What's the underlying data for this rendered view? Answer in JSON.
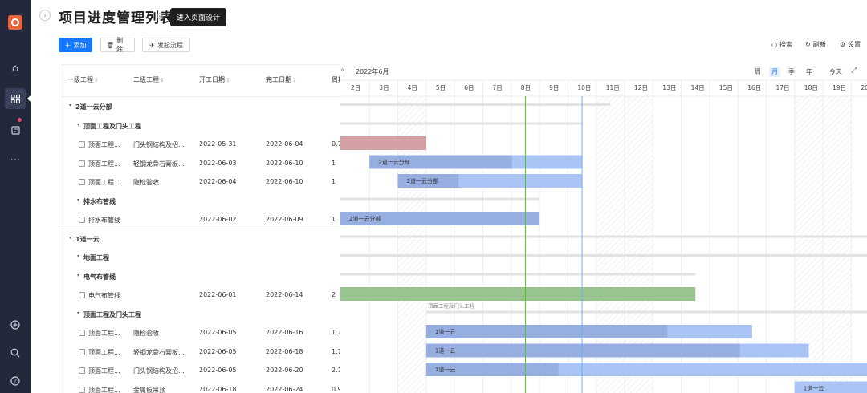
{
  "page": {
    "title": "项目进度管理列表",
    "tooltip": "进入页面设计"
  },
  "toolbar": {
    "add_label": "添加",
    "delete_label": "删除",
    "process_label": "发起流程",
    "search_label": "搜索",
    "refresh_label": "刷新",
    "settings_label": "设置"
  },
  "table": {
    "columns": [
      "一级工程",
      "二级工程",
      "开工日期",
      "完工日期",
      "周期"
    ],
    "rows": [
      {
        "type": "group",
        "level": 1,
        "label": "2道一云分部"
      },
      {
        "type": "group",
        "level": 2,
        "label": "顶面工程及门头工程"
      },
      {
        "type": "item",
        "c1": "顶面工程...",
        "c2": "门头钢结构及招...",
        "start": "2022-05-31",
        "end": "2022-06-04",
        "cycle": "0.7"
      },
      {
        "type": "item",
        "c1": "顶面工程...",
        "c2": "轻钢龙骨石膏板...",
        "start": "2022-06-03",
        "end": "2022-06-10",
        "cycle": "1"
      },
      {
        "type": "item",
        "c1": "顶面工程...",
        "c2": "隐检验收",
        "start": "2022-06-04",
        "end": "2022-06-10",
        "cycle": "1"
      },
      {
        "type": "group",
        "level": 2,
        "label": "排水布管线"
      },
      {
        "type": "item",
        "c1": "排水布管线",
        "c2": "",
        "start": "2022-06-02",
        "end": "2022-06-09",
        "cycle": "1"
      },
      {
        "type": "group",
        "level": 1,
        "label": "1道一云"
      },
      {
        "type": "group",
        "level": 2,
        "label": "地面工程"
      },
      {
        "type": "group",
        "level": 2,
        "label": "电气布管线"
      },
      {
        "type": "item",
        "c1": "电气布管线",
        "c2": "",
        "start": "2022-06-01",
        "end": "2022-06-14",
        "cycle": "2"
      },
      {
        "type": "group",
        "level": 2,
        "label": "顶面工程及门头工程"
      },
      {
        "type": "item",
        "c1": "顶面工程...",
        "c2": "隐检验收",
        "start": "2022-06-05",
        "end": "2022-06-16",
        "cycle": "1.7"
      },
      {
        "type": "item",
        "c1": "顶面工程...",
        "c2": "轻钢龙骨石膏板...",
        "start": "2022-06-05",
        "end": "2022-06-18",
        "cycle": "1.7"
      },
      {
        "type": "item",
        "c1": "顶面工程...",
        "c2": "门头钢结构及招...",
        "start": "2022-06-05",
        "end": "2022-06-20",
        "cycle": "2.1"
      },
      {
        "type": "item",
        "c1": "顶面工程...",
        "c2": "金属板吊顶",
        "start": "2022-06-18",
        "end": "2022-06-24",
        "cycle": "0.9"
      }
    ]
  },
  "gantt": {
    "month_label": "2022年6月",
    "zoom_options": [
      "周",
      "月",
      "季",
      "年",
      "今天"
    ],
    "selected_zoom": "月",
    "days": [
      "2日",
      "3日",
      "4日",
      "5日",
      "6日",
      "7日",
      "8日",
      "9日",
      "10日",
      "11日",
      "12日",
      "13日",
      "14日",
      "15日",
      "16日",
      "17日",
      "18日",
      "19日",
      "20"
    ],
    "first_day": 2,
    "today": 8.0,
    "marker": 10.0,
    "weekend_days": [
      4,
      11,
      12,
      18,
      19
    ],
    "bars": [
      {
        "row": 0,
        "kind": "summary",
        "start": 1.0,
        "end": 11.5
      },
      {
        "row": 1,
        "kind": "summary",
        "start": 1.0,
        "end": 10.5
      },
      {
        "row": 2,
        "kind": "task",
        "start": 1.0,
        "end": 5.0,
        "progress": 1.0,
        "color": "#d4a0a4",
        "label": ""
      },
      {
        "row": 3,
        "kind": "task",
        "start": 3.0,
        "end": 10.5,
        "progress": 0.67,
        "color": "#a9c4f5",
        "done": "#96aee0",
        "label": "2道一云分部"
      },
      {
        "row": 4,
        "kind": "task",
        "start": 4.0,
        "end": 10.5,
        "progress": 0.33,
        "color": "#a9c4f5",
        "done": "#96aee0",
        "label": "2道一云分部"
      },
      {
        "row": 5,
        "kind": "summary",
        "start": 1.0,
        "end": 9.0,
        "label": "排水布管线"
      },
      {
        "row": 6,
        "kind": "task",
        "start": 1.0,
        "end": 9.0,
        "progress": 1.0,
        "color": "#96aee0",
        "label": "2道一云分部"
      },
      {
        "row": 7,
        "kind": "summary",
        "start": 1.0,
        "end": 21.0
      },
      {
        "row": 8,
        "kind": "summary",
        "start": 1.0,
        "end": 21.0
      },
      {
        "row": 9,
        "kind": "summary",
        "start": 1.0,
        "end": 14.5
      },
      {
        "row": 10,
        "kind": "task",
        "start": 1.0,
        "end": 14.5,
        "progress": 1.0,
        "color": "#98c48f",
        "label": ""
      },
      {
        "row": 11,
        "kind": "summary",
        "start": 5.0,
        "end": 21.0,
        "label": "顶面工程及门头工程"
      },
      {
        "row": 12,
        "kind": "task",
        "start": 5.0,
        "end": 16.5,
        "progress": 0.74,
        "color": "#a9c4f5",
        "done": "#96aee0",
        "label": "1道一云"
      },
      {
        "row": 13,
        "kind": "task",
        "start": 5.0,
        "end": 18.5,
        "progress": 0.82,
        "color": "#a9c4f5",
        "done": "#96aee0",
        "label": "1道一云"
      },
      {
        "row": 14,
        "kind": "task",
        "start": 5.0,
        "end": 21.0,
        "progress": 0.3,
        "color": "#a9c4f5",
        "done": "#96aee0",
        "label": "1道一云"
      },
      {
        "row": 15,
        "kind": "task",
        "start": 18.0,
        "end": 21.0,
        "progress": 0.0,
        "color": "#a9c4f5",
        "label": "1道一云"
      }
    ]
  },
  "colors": {
    "primary": "#1677ff",
    "nav_bg": "#23293a",
    "today_line": "#52c41a",
    "marker_line": "#69b1ff"
  }
}
